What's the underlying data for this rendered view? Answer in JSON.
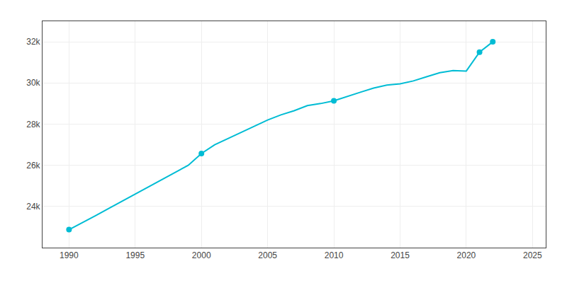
{
  "chart_data": {
    "type": "line",
    "x": [
      1990,
      1991,
      1992,
      1993,
      1994,
      1995,
      1996,
      1997,
      1998,
      1999,
      2000,
      2001,
      2002,
      2003,
      2004,
      2005,
      2006,
      2007,
      2008,
      2009,
      2010,
      2011,
      2012,
      2013,
      2014,
      2015,
      2016,
      2017,
      2018,
      2019,
      2020,
      2021,
      2022
    ],
    "series": [
      {
        "type": "line",
        "color": "#00bcd4",
        "line_style": "solid",
        "values": [
          22874,
          23200,
          23550,
          23900,
          24250,
          24600,
          24950,
          25300,
          25650,
          26000,
          26573,
          27000,
          27300,
          27600,
          27900,
          28200,
          28450,
          28650,
          28900,
          29000,
          29136,
          29350,
          29550,
          29750,
          29900,
          29960,
          30100,
          30300,
          30500,
          30600,
          30580,
          31500,
          32000
        ]
      },
      {
        "type": "scatter",
        "color": "#00bcd4",
        "marker": "circle",
        "values": [
          22874,
          null,
          null,
          null,
          null,
          null,
          null,
          null,
          null,
          null,
          26573,
          null,
          null,
          null,
          null,
          null,
          null,
          null,
          null,
          null,
          29136,
          null,
          null,
          null,
          null,
          null,
          null,
          null,
          null,
          null,
          null,
          31500,
          32000
        ]
      }
    ],
    "xlim": [
      1988,
      2026
    ],
    "xticks": [
      1990,
      1995,
      2000,
      2005,
      2010,
      2015,
      2020,
      2025
    ],
    "ylim": [
      22000,
      33000
    ],
    "yticks": [
      {
        "value": 24000,
        "label": "24k"
      },
      {
        "value": 26000,
        "label": "26k"
      },
      {
        "value": 28000,
        "label": "28k"
      },
      {
        "value": 30000,
        "label": "30k"
      },
      {
        "value": 32000,
        "label": "32k"
      }
    ],
    "grid": true
  }
}
